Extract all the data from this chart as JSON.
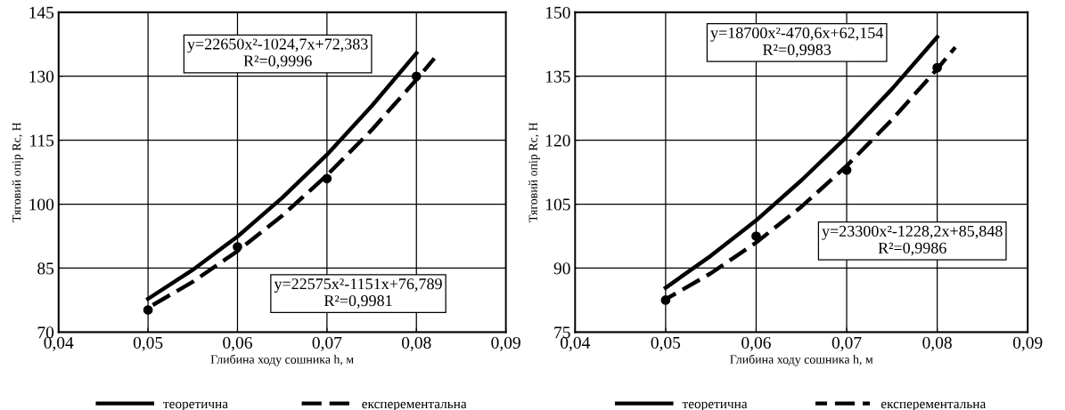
{
  "chart_data": [
    {
      "type": "line",
      "xlabel": "Глибина ходу сошника h, м",
      "ylabel": "Тяговий опір Rc, Н",
      "grid": true,
      "legend": "bottom",
      "xlim": [
        0.04,
        0.09
      ],
      "xticks": [
        {
          "value": 0.04,
          "label": "0,04"
        },
        {
          "value": 0.05,
          "label": "0,05"
        },
        {
          "value": 0.06,
          "label": "0,06"
        },
        {
          "value": 0.07,
          "label": "0,07"
        },
        {
          "value": 0.08,
          "label": "0,08"
        },
        {
          "value": 0.09,
          "label": "0,09"
        }
      ],
      "ylim": [
        70,
        145
      ],
      "yticks": [
        70,
        85,
        100,
        115,
        130,
        145
      ],
      "series": [
        {
          "name": "теоретична",
          "line_style": "solid",
          "color": "#000000",
          "x": [
            0.05,
            0.055,
            0.06,
            0.065,
            0.07,
            0.075,
            0.08
          ],
          "values": [
            77.8,
            84.6,
            92.4,
            101.5,
            111.6,
            123,
            135.4
          ]
        },
        {
          "name": "експерементальна",
          "line_style": "dashed",
          "color": "#000000",
          "x": [
            0.05,
            0.055,
            0.06,
            0.065,
            0.07,
            0.075,
            0.08,
            0.082
          ],
          "values": [
            75.7,
            81.8,
            89,
            97.3,
            106.8,
            117.4,
            129.2,
            134.2
          ]
        },
        {
          "type": "scatter",
          "marker": "circle",
          "color": "#000000",
          "x": [
            0.05,
            0.06,
            0.07,
            0.08
          ],
          "values": [
            75.2,
            90,
            106,
            130
          ]
        }
      ],
      "annotations": [
        "y=22650x²-1024,7x+72,383\nR²=0,9996",
        "y=22575x²-1151x+76,789\nR²=0,9981"
      ]
    },
    {
      "type": "line",
      "xlabel": "Глибина ходу сошника h, м",
      "ylabel": "Тяговий опір Rc, Н",
      "grid": true,
      "legend": "bottom",
      "xlim": [
        0.04,
        0.09
      ],
      "xticks": [
        {
          "value": 0.04,
          "label": "0,04"
        },
        {
          "value": 0.05,
          "label": "0,05"
        },
        {
          "value": 0.06,
          "label": "0,06"
        },
        {
          "value": 0.07,
          "label": "0,07"
        },
        {
          "value": 0.08,
          "label": "0,08"
        },
        {
          "value": 0.09,
          "label": "0,09"
        }
      ],
      "ylim": [
        75,
        150
      ],
      "yticks": [
        75,
        90,
        105,
        120,
        135,
        150
      ],
      "series": [
        {
          "name": "теоретична",
          "line_style": "solid",
          "color": "#000000",
          "x": [
            0.05,
            0.055,
            0.06,
            0.065,
            0.07,
            0.075,
            0.08
          ],
          "values": [
            85.4,
            92.9,
            101.2,
            110.6,
            120.8,
            132,
            144.2
          ]
        },
        {
          "name": "експерементальна",
          "line_style": "dashed",
          "color": "#000000",
          "x": [
            0.05,
            0.055,
            0.06,
            0.065,
            0.07,
            0.075,
            0.08,
            0.082
          ],
          "values": [
            82.7,
            88.8,
            96,
            104.4,
            114,
            124.8,
            136.7,
            141.8
          ]
        },
        {
          "type": "scatter",
          "marker": "circle",
          "color": "#000000",
          "x": [
            0.05,
            0.06,
            0.07,
            0.08
          ],
          "values": [
            82.5,
            97.5,
            113,
            137
          ]
        }
      ],
      "annotations": [
        "y=18700x²-470,6x+62,154\nR²=0,9983",
        "y=23300x²-1228,2x+85,848\nR²=0,9986"
      ]
    }
  ]
}
